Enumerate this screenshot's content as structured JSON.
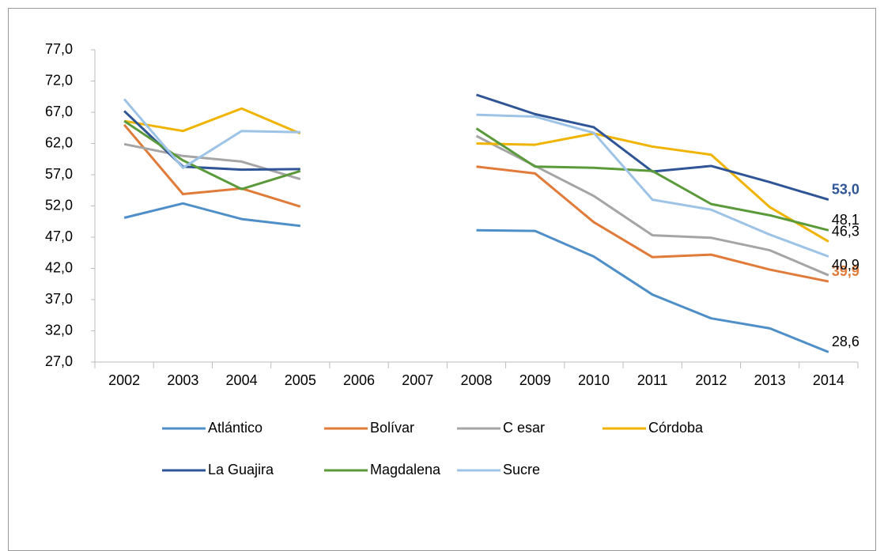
{
  "chart_data": {
    "type": "line",
    "categories": [
      "2002",
      "2003",
      "2004",
      "2005",
      "2006",
      "2007",
      "2008",
      "2009",
      "2010",
      "2011",
      "2012",
      "2013",
      "2014"
    ],
    "ylim": [
      27,
      77
    ],
    "yticks": [
      {
        "value": 77,
        "label": "77,0"
      },
      {
        "value": 72,
        "label": "72,0"
      },
      {
        "value": 67,
        "label": "67,0"
      },
      {
        "value": 62,
        "label": "62,0"
      },
      {
        "value": 57,
        "label": "57,0"
      },
      {
        "value": 52,
        "label": "52,0"
      },
      {
        "value": 47,
        "label": "47,0"
      },
      {
        "value": 42,
        "label": "42,0"
      },
      {
        "value": 37,
        "label": "37,0"
      },
      {
        "value": 32,
        "label": "32,0"
      },
      {
        "value": 27,
        "label": "27,0"
      }
    ],
    "grid": false,
    "legend": "bottom",
    "series": [
      {
        "name": "Atlántico",
        "color": "#4f8fc8",
        "values": [
          50.1,
          52.4,
          49.9,
          48.8,
          null,
          null,
          48.1,
          48.0,
          43.9,
          37.8,
          34.0,
          32.4,
          28.6
        ],
        "value_labels": [
          null,
          null,
          null,
          null,
          null,
          null,
          null,
          null,
          null,
          null,
          null,
          null,
          "28,6"
        ]
      },
      {
        "name": "Bolívar",
        "color": "#e07b39",
        "values": [
          65.0,
          53.9,
          54.8,
          51.9,
          null,
          null,
          58.3,
          57.2,
          49.4,
          43.8,
          44.2,
          41.8,
          39.9
        ],
        "value_labels": [
          null,
          null,
          null,
          null,
          null,
          null,
          null,
          null,
          null,
          null,
          null,
          null,
          "39,9"
        ],
        "label_bold": true
      },
      {
        "name": "C esar",
        "color": "#a5a5a5",
        "values": [
          61.9,
          60.0,
          59.1,
          56.3,
          null,
          null,
          63.2,
          58.4,
          53.6,
          47.3,
          46.9,
          44.9,
          40.9
        ],
        "value_labels": [
          null,
          null,
          null,
          null,
          null,
          null,
          null,
          null,
          null,
          null,
          null,
          null,
          "40,9"
        ]
      },
      {
        "name": "Córdoba",
        "color": "#f0b400",
        "values": [
          65.6,
          64.0,
          67.6,
          63.6,
          null,
          null,
          62.0,
          61.8,
          63.6,
          61.5,
          60.2,
          51.8,
          46.3
        ],
        "value_labels": [
          null,
          null,
          null,
          null,
          null,
          null,
          null,
          null,
          null,
          null,
          null,
          null,
          "46,3"
        ]
      },
      {
        "name": "La Guajira",
        "color": "#2f5597",
        "values": [
          67.2,
          58.3,
          57.8,
          57.9,
          null,
          null,
          69.8,
          66.7,
          64.6,
          57.5,
          58.4,
          55.8,
          53.0
        ],
        "value_labels": [
          null,
          null,
          null,
          null,
          null,
          null,
          null,
          null,
          null,
          null,
          null,
          null,
          "53,0"
        ],
        "label_bold": true
      },
      {
        "name": "Magdalena",
        "color": "#5a9a3a",
        "values": [
          65.6,
          59.3,
          54.7,
          57.6,
          null,
          null,
          64.4,
          58.3,
          58.1,
          57.6,
          52.3,
          50.5,
          48.1
        ],
        "value_labels": [
          null,
          null,
          null,
          null,
          null,
          null,
          null,
          null,
          null,
          null,
          null,
          null,
          "48,1"
        ]
      },
      {
        "name": "Sucre",
        "color": "#9dc3e6",
        "values": [
          69.1,
          58.1,
          64.0,
          63.8,
          null,
          null,
          66.6,
          66.3,
          63.7,
          53.0,
          51.4,
          47.4,
          43.9
        ]
      }
    ]
  }
}
